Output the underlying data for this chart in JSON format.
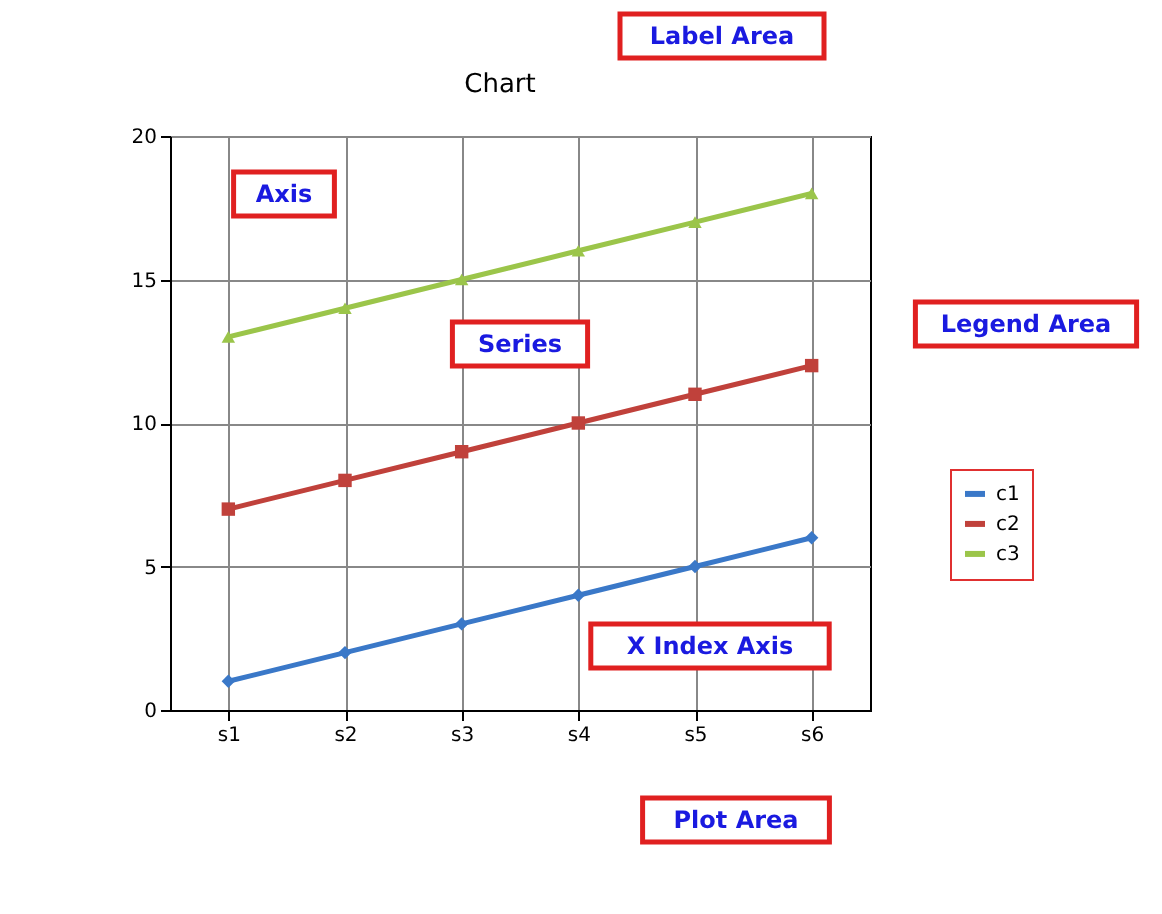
{
  "chart_data": {
    "type": "line",
    "title": "Chart",
    "categories": [
      "s1",
      "s2",
      "s3",
      "s4",
      "s5",
      "s6"
    ],
    "series": [
      {
        "name": "c1",
        "color": "#3a78c8",
        "values": [
          1,
          2,
          3,
          4,
          5,
          6
        ],
        "marker": "diamond"
      },
      {
        "name": "c2",
        "color": "#c0413b",
        "values": [
          7,
          8,
          9,
          10,
          11,
          12
        ],
        "marker": "square"
      },
      {
        "name": "c3",
        "color": "#9bc54a",
        "values": [
          13,
          14,
          15,
          16,
          17,
          18
        ],
        "marker": "triangle"
      }
    ],
    "ylim": [
      0,
      20
    ],
    "yticks": [
      0,
      5,
      10,
      15,
      20
    ],
    "grid": true,
    "legend": "right",
    "annotations": [
      "Label Area",
      "Axis",
      "Series",
      "Legend Area",
      "X Index Axis",
      "Plot Area"
    ]
  }
}
